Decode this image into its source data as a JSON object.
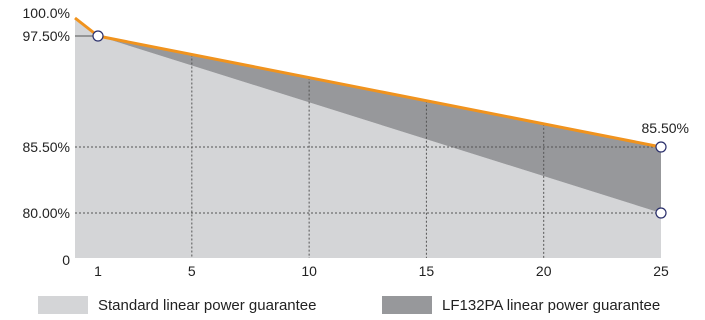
{
  "chart_data": {
    "type": "area",
    "title": "",
    "xlabel": "",
    "ylabel": "",
    "x_ticks": [
      "1",
      "5",
      "10",
      "15",
      "20",
      "25"
    ],
    "y_ticks": [
      "100.0%",
      "97.50%",
      "85.50%",
      "80.00%",
      "0"
    ],
    "series": [
      {
        "name": "Standard linear power guarantee",
        "color": "#d4d5d7",
        "x": [
          0,
          1,
          25
        ],
        "y": [
          100.0,
          97.5,
          80.0
        ]
      },
      {
        "name": "LF132PA linear power guarantee",
        "color": "#97989b",
        "x": [
          0,
          1,
          25
        ],
        "y": [
          100.0,
          97.5,
          85.5
        ]
      }
    ],
    "top_line_color": "#f0931e",
    "annotations": [
      {
        "text": "85.50%",
        "x": 25,
        "y": 85.5
      }
    ],
    "grid": true,
    "legend_position": "bottom"
  }
}
